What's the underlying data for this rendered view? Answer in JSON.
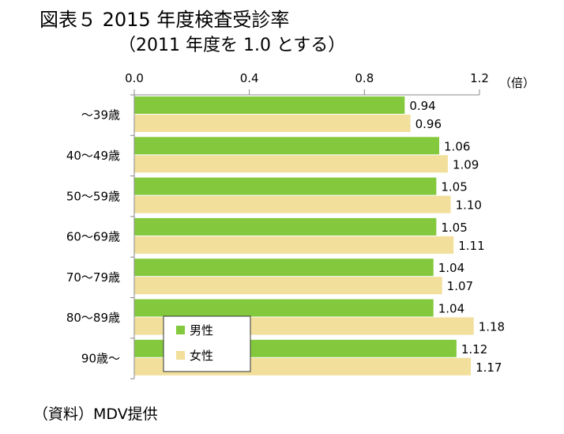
{
  "title": "図表５ 2015 年度検査受診率",
  "subtitle": "（2011 年度を 1.0 とする）",
  "source": "（資料）MDV提供",
  "colors": {
    "male": "#84c93d",
    "female": "#f1df9b",
    "axis": "#888888"
  },
  "chart_data": {
    "type": "bar",
    "orientation": "horizontal",
    "title": "2015 年度検査受診率",
    "subtitle": "（2011 年度を 1.0 とする）",
    "unit": "（倍）",
    "xlim": [
      0,
      1.2
    ],
    "ticks": [
      "0.0",
      "0.4",
      "0.8",
      "1.2"
    ],
    "tick_values": [
      0,
      0.4,
      0.8,
      1.2
    ],
    "grid": false,
    "legend_position": "bottom-left",
    "categories": [
      "～39歳",
      "40～49歳",
      "50～59歳",
      "60～69歳",
      "70～79歳",
      "80～89歳",
      "90歳～"
    ],
    "series": [
      {
        "name": "男性",
        "values": [
          0.94,
          1.06,
          1.05,
          1.05,
          1.04,
          1.04,
          1.12
        ],
        "labels": [
          "0.94",
          "1.06",
          "1.05",
          "1.05",
          "1.04",
          "1.04",
          "1.12"
        ]
      },
      {
        "name": "女性",
        "values": [
          0.96,
          1.09,
          1.1,
          1.11,
          1.07,
          1.18,
          1.17
        ],
        "labels": [
          "0.96",
          "1.09",
          "1.10",
          "1.11",
          "1.07",
          "1.18",
          "1.17"
        ]
      }
    ]
  }
}
